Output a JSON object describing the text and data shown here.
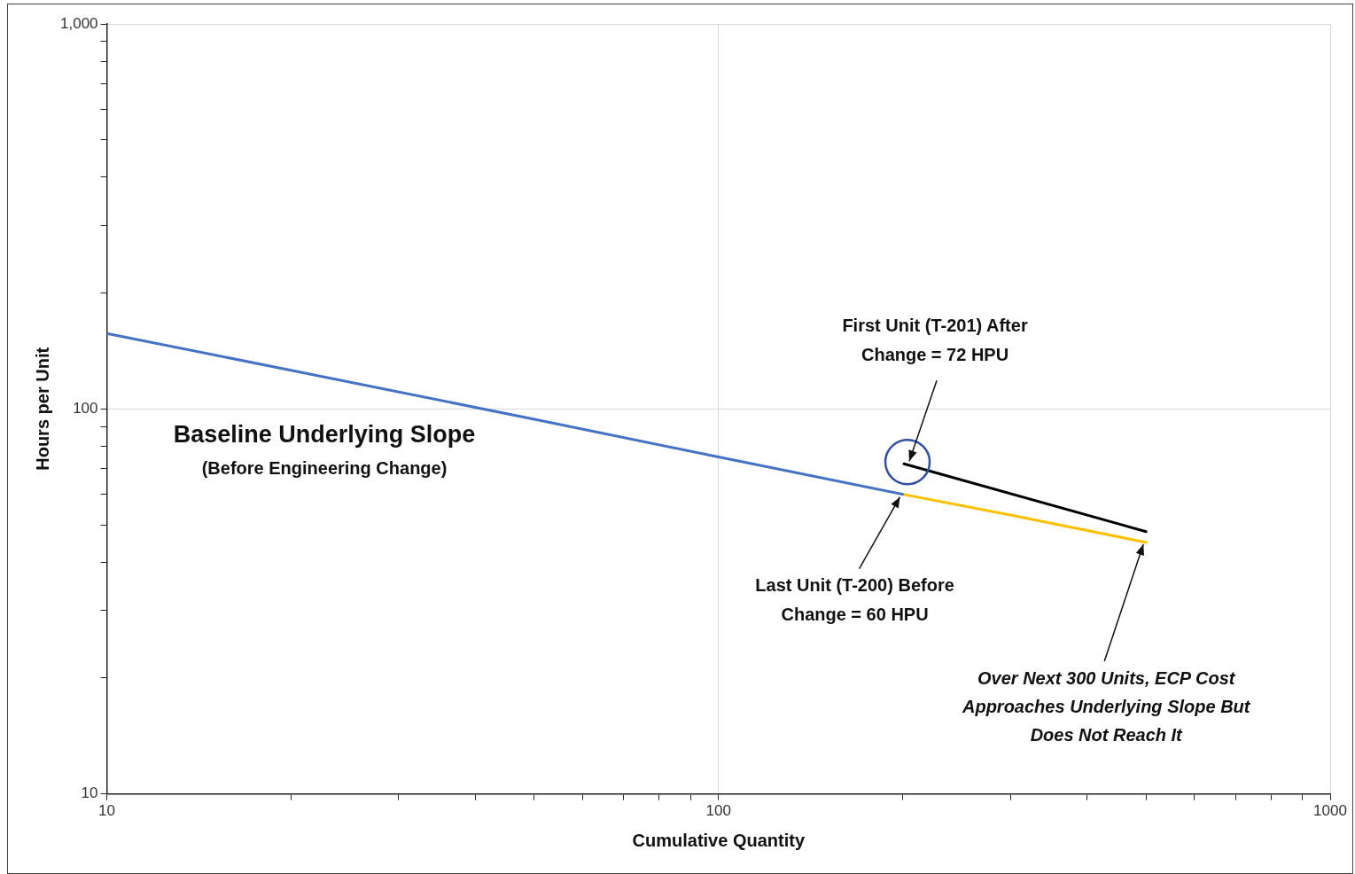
{
  "chart_data": {
    "type": "line",
    "xlabel": "Cumulative Quantity",
    "ylabel": "Hours per Unit",
    "log": "xy",
    "xlim": [
      10,
      1000
    ],
    "ylim": [
      10,
      1000
    ],
    "xticks": [
      10,
      {
        "value": 20,
        "label": null
      },
      {
        "value": 30,
        "label": null
      },
      {
        "value": 40,
        "label": null
      },
      {
        "value": 50,
        "label": null
      },
      {
        "value": 60,
        "label": null
      },
      {
        "value": 70,
        "label": null
      },
      {
        "value": 80,
        "label": null
      },
      {
        "value": 90,
        "label": null
      },
      100,
      {
        "value": 200,
        "label": null
      },
      {
        "value": 300,
        "label": null
      },
      {
        "value": 400,
        "label": null
      },
      {
        "value": 500,
        "label": null
      },
      {
        "value": 600,
        "label": null
      },
      {
        "value": 700,
        "label": null
      },
      {
        "value": 800,
        "label": null
      },
      {
        "value": 900,
        "label": null
      },
      1000
    ],
    "yticks": [
      10,
      {
        "value": 20,
        "label": null
      },
      {
        "value": 30,
        "label": null
      },
      {
        "value": 40,
        "label": null
      },
      {
        "value": 50,
        "label": null
      },
      {
        "value": 60,
        "label": null
      },
      {
        "value": 70,
        "label": null
      },
      {
        "value": 80,
        "label": null
      },
      {
        "value": 90,
        "label": null
      },
      100,
      {
        "value": 200,
        "label": null
      },
      {
        "value": 300,
        "label": null
      },
      {
        "value": 400,
        "label": null
      },
      {
        "value": 500,
        "label": null
      },
      {
        "value": 600,
        "label": null
      },
      {
        "value": 700,
        "label": null
      },
      {
        "value": 800,
        "label": null
      },
      {
        "value": 900,
        "label": null
      },
      {
        "value": 1000,
        "label": "1,000"
      }
    ],
    "grid": true,
    "legend": false,
    "marker": "none",
    "line_style": "solid",
    "series": [
      {
        "color": "#4472c4",
        "x": [
          10,
          20,
          50,
          100,
          200
        ],
        "values": [
          157,
          126,
          94,
          75,
          60
        ]
      },
      {
        "color": "#ffc000",
        "x": [
          200,
          300,
          500
        ],
        "values": [
          60,
          53,
          45
        ]
      },
      {
        "color": "#000000",
        "x": [
          201,
          500
        ],
        "values": [
          72,
          48
        ]
      }
    ],
    "annotations": [
      "Baseline Underlying Slope",
      "(Before Engineering Change)",
      {
        "text": "First Unit (T-201) After\nChange = 72 HPU",
        "x": 201,
        "y": 72
      },
      {
        "text": "Last Unit (T-200) Before\nChange = 60 HPU",
        "x": 200,
        "y": 60
      },
      {
        "text": "Over Next 300 Units, ECP Cost\nApproaches Underlying Slope But\nDoes Not Reach It",
        "x": 500,
        "y": 45
      }
    ]
  }
}
